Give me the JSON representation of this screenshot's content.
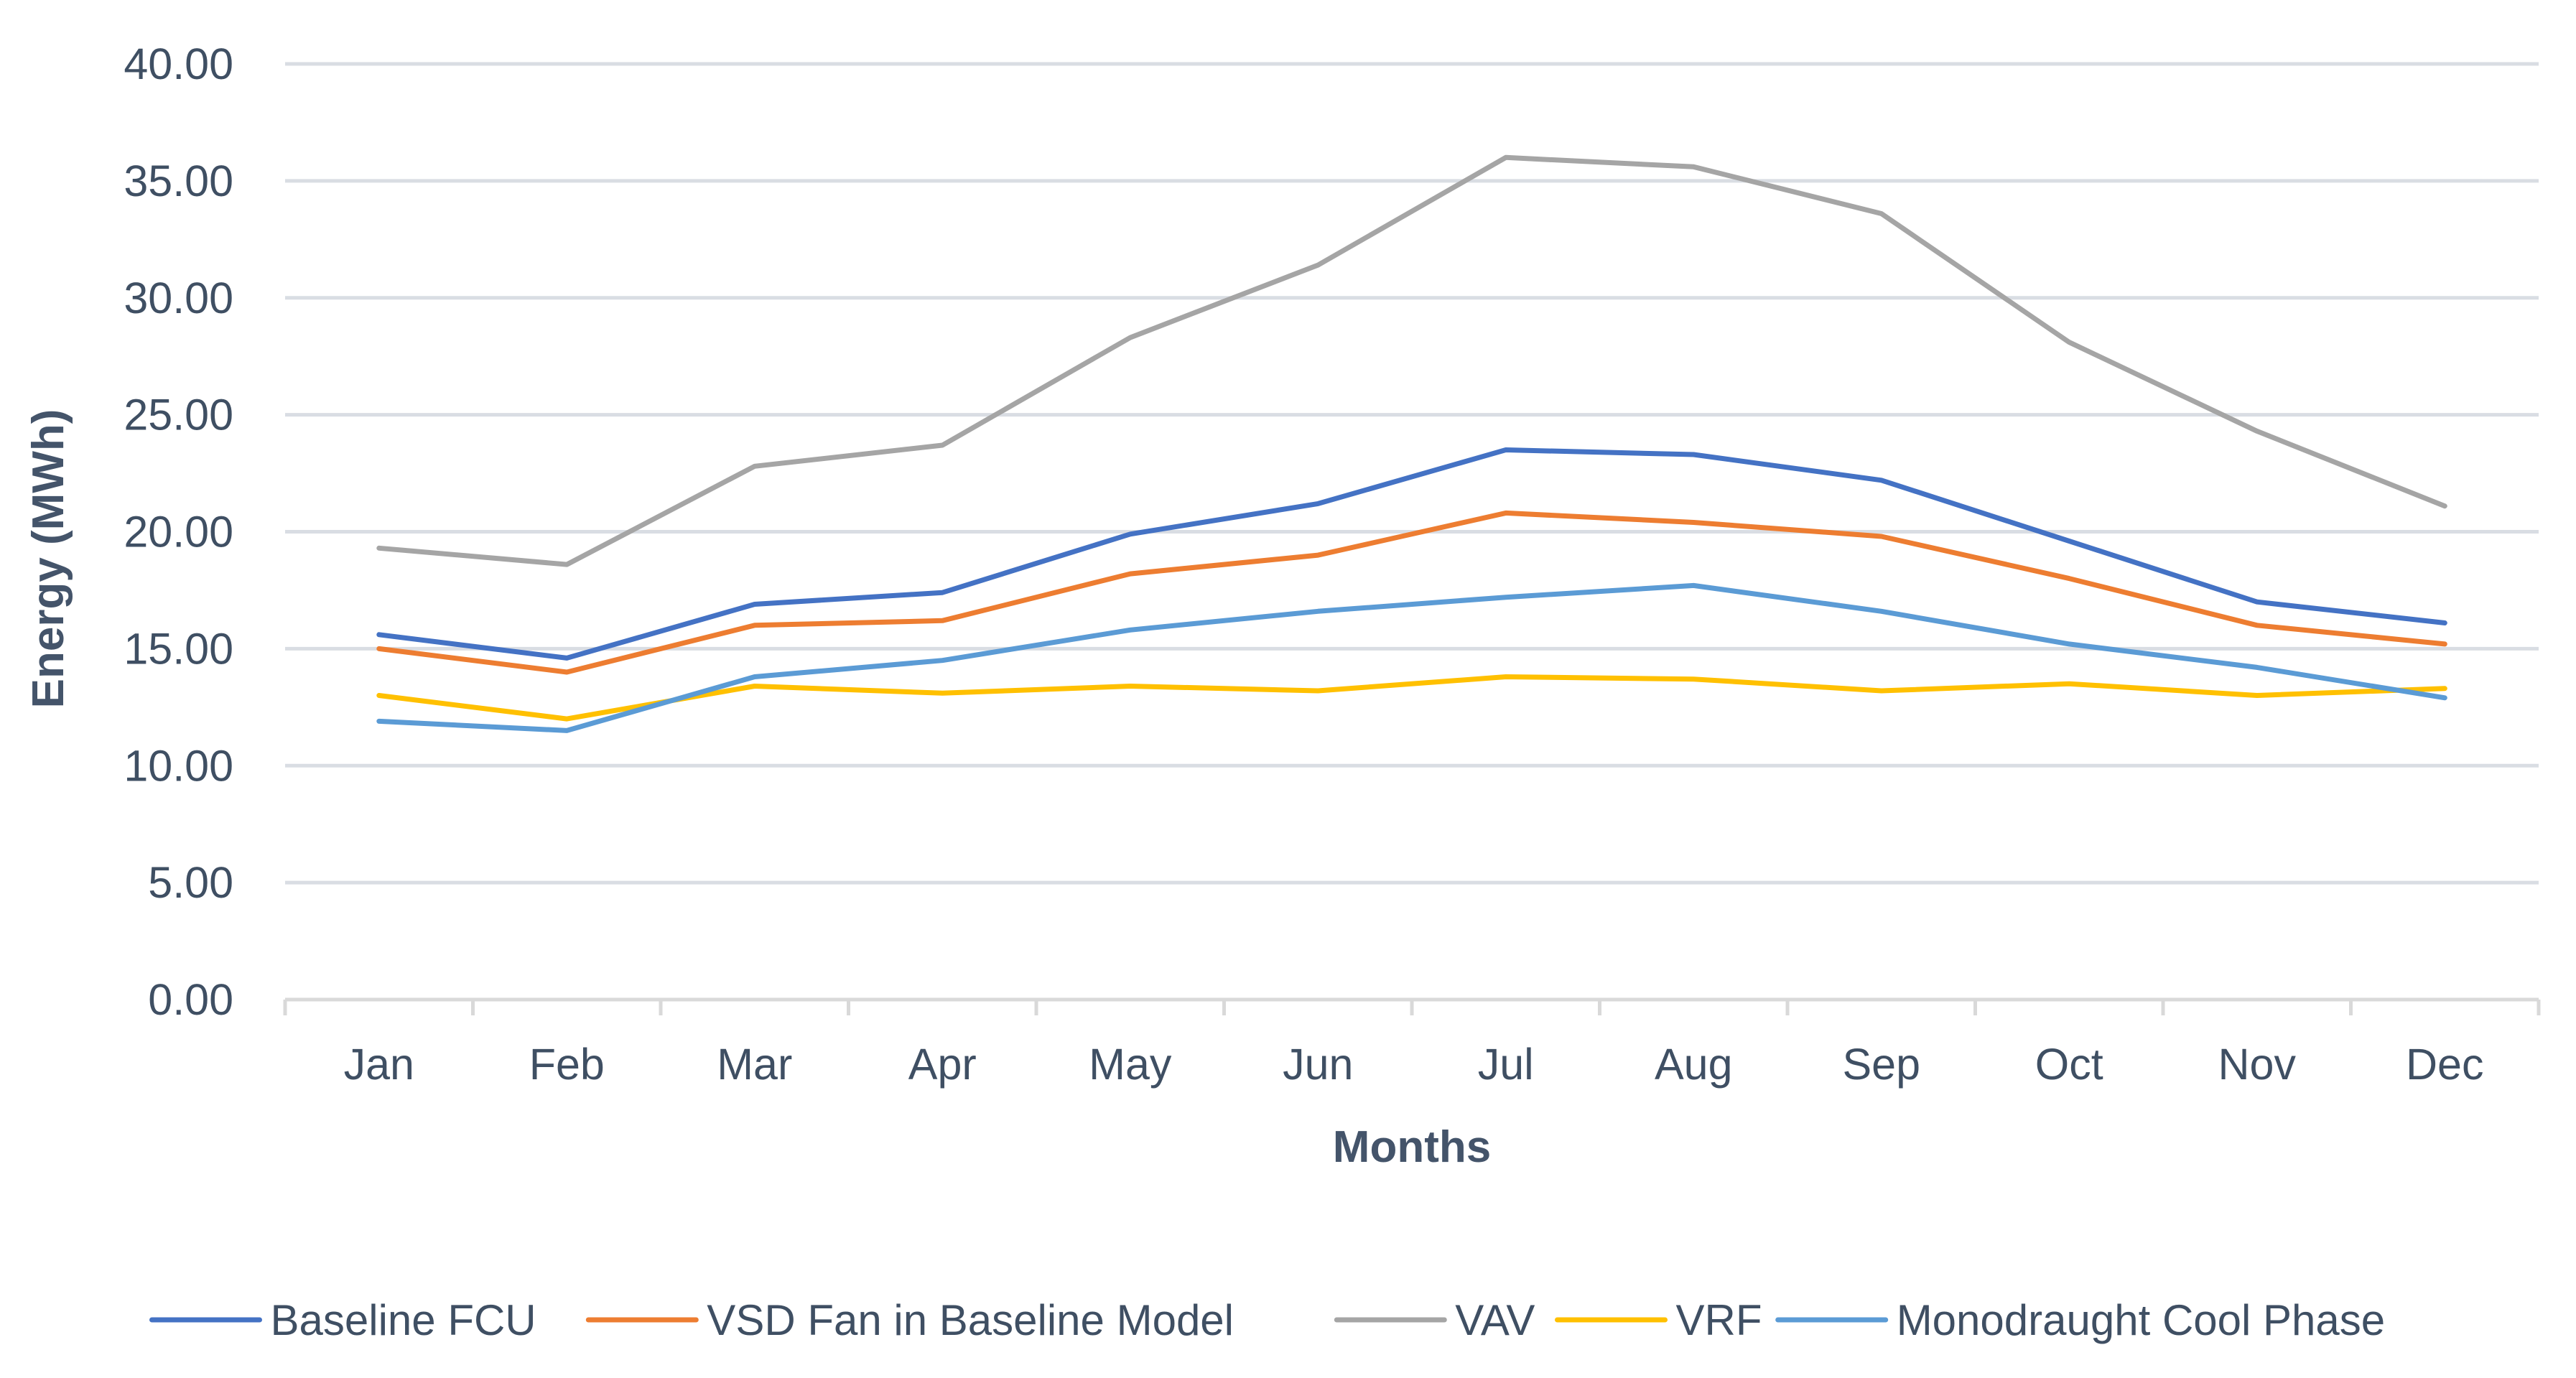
{
  "chart_data": {
    "type": "line",
    "title": "",
    "xlabel": "Months",
    "ylabel": "Energy (MWh)",
    "ylim": [
      0,
      40
    ],
    "yticks": [
      0,
      5,
      10,
      15,
      20,
      25,
      30,
      35,
      40
    ],
    "ytick_labels": [
      "0.00",
      "5.00",
      "10.00",
      "15.00",
      "20.00",
      "25.00",
      "30.00",
      "35.00",
      "40.00"
    ],
    "grid": true,
    "legend_position": "bottom",
    "categories": [
      "Jan",
      "Feb",
      "Mar",
      "Apr",
      "May",
      "Jun",
      "Jul",
      "Aug",
      "Sep",
      "Oct",
      "Nov",
      "Dec"
    ],
    "series": [
      {
        "name": "Baseline FCU",
        "color": "#4472c4",
        "values": [
          15.6,
          14.6,
          16.9,
          17.4,
          19.9,
          21.2,
          23.5,
          23.3,
          22.2,
          19.6,
          17.0,
          16.1
        ]
      },
      {
        "name": "VSD Fan in Baseline Model",
        "color": "#ed7d31",
        "values": [
          15.0,
          14.0,
          16.0,
          16.2,
          18.2,
          19.0,
          20.8,
          20.4,
          19.8,
          18.0,
          16.0,
          15.2
        ]
      },
      {
        "name": "VAV",
        "color": "#a5a5a5",
        "values": [
          19.3,
          18.6,
          22.8,
          23.7,
          28.3,
          31.4,
          36.0,
          35.6,
          33.6,
          28.1,
          24.3,
          21.1
        ]
      },
      {
        "name": "VRF",
        "color": "#ffc000",
        "values": [
          13.0,
          12.0,
          13.4,
          13.1,
          13.4,
          13.2,
          13.8,
          13.7,
          13.2,
          13.5,
          13.0,
          13.3
        ]
      },
      {
        "name": "Monodraught Cool Phase",
        "color": "#5b9bd5",
        "values": [
          11.9,
          11.5,
          13.8,
          14.5,
          15.8,
          16.6,
          17.2,
          17.7,
          16.6,
          15.2,
          14.2,
          12.9
        ]
      }
    ]
  }
}
